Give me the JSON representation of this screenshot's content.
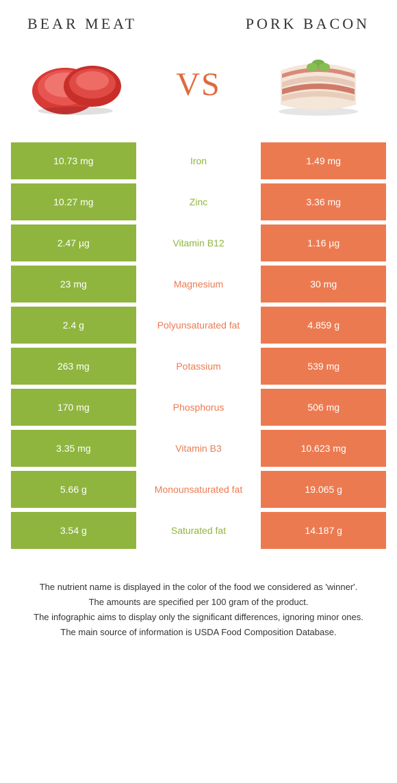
{
  "colors": {
    "left_bg": "#8fb53e",
    "right_bg": "#ec7a51",
    "left_winner_text": "#8fb53e",
    "right_winner_text": "#ec7a51",
    "vs_text": "#e16a3d",
    "title_text": "#333333"
  },
  "header": {
    "left_title": "Bear meat",
    "right_title": "Pork bacon",
    "vs_label": "VS"
  },
  "rows": [
    {
      "left": "10.73 mg",
      "label": "Iron",
      "right": "1.49 mg",
      "winner": "left"
    },
    {
      "left": "10.27 mg",
      "label": "Zinc",
      "right": "3.36 mg",
      "winner": "left"
    },
    {
      "left": "2.47 µg",
      "label": "Vitamin B12",
      "right": "1.16 µg",
      "winner": "left"
    },
    {
      "left": "23 mg",
      "label": "Magnesium",
      "right": "30 mg",
      "winner": "right"
    },
    {
      "left": "2.4 g",
      "label": "Polyunsaturated fat",
      "right": "4.859 g",
      "winner": "right"
    },
    {
      "left": "263 mg",
      "label": "Potassium",
      "right": "539 mg",
      "winner": "right"
    },
    {
      "left": "170 mg",
      "label": "Phosphorus",
      "right": "506 mg",
      "winner": "right"
    },
    {
      "left": "3.35 mg",
      "label": "Vitamin B3",
      "right": "10.623 mg",
      "winner": "right"
    },
    {
      "left": "5.66 g",
      "label": "Monounsaturated fat",
      "right": "19.065 g",
      "winner": "right"
    },
    {
      "left": "3.54 g",
      "label": "Saturated fat",
      "right": "14.187 g",
      "winner": "left"
    }
  ],
  "footer": {
    "line1": "The nutrient name is displayed in the color of the food we considered as 'winner'.",
    "line2": "The amounts are specified per 100 gram of the product.",
    "line3": "The infographic aims to display only the significant differences, ignoring minor ones.",
    "line4": "The main source of information is USDA Food Composition Database."
  }
}
